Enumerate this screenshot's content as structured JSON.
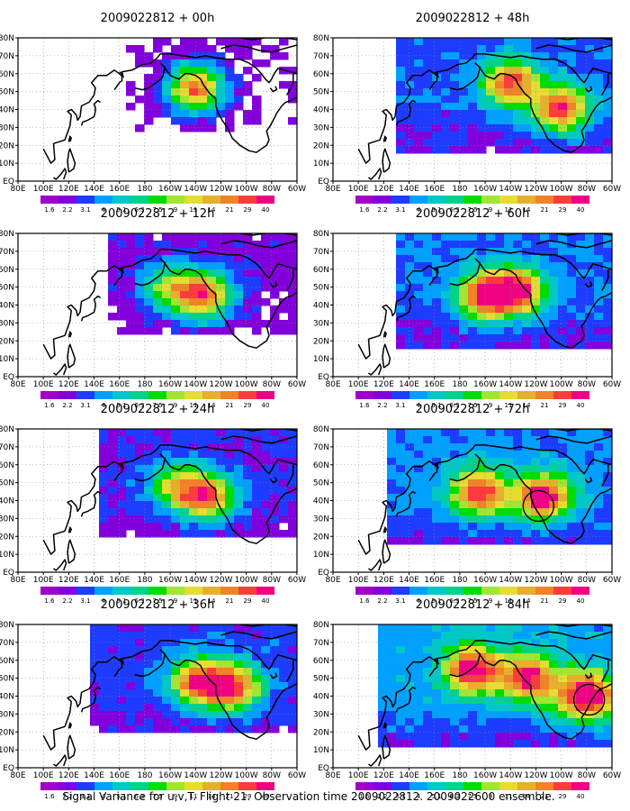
{
  "caption": "Signal Variance for u,v,T. Flight 21. Observation time 2009022812. 2009022600 ensemble.",
  "colorbar": {
    "levels": [
      "1.6",
      "2.2",
      "3.1",
      "4",
      "5.1",
      "6.3",
      "7.5",
      "9",
      "11",
      "14",
      "21",
      "29",
      "40"
    ],
    "colors": [
      "#a000c8",
      "#8200dc",
      "#1e3cff",
      "#00a0ff",
      "#00c8c8",
      "#00d28c",
      "#00dc00",
      "#a0e632",
      "#e6dc32",
      "#e6af2d",
      "#f08228",
      "#fa3c3c",
      "#f00082"
    ]
  },
  "longitude_ticks": [
    "80E",
    "100E",
    "120E",
    "140E",
    "160E",
    "180",
    "160W",
    "140W",
    "120W",
    "100W",
    "80W",
    "60W"
  ],
  "latitude_ticks": [
    "EQ",
    "10N",
    "20N",
    "30N",
    "40N",
    "50N",
    "60N",
    "70N",
    "80N"
  ],
  "chart_data": [
    {
      "type": "heatmap",
      "title": "2009022812 + 00h",
      "intensity": 0.15,
      "centers": [
        {
          "lon": -140,
          "lat": 52,
          "level": 10
        }
      ],
      "circles": []
    },
    {
      "type": "heatmap",
      "title": "2009022812 + 12h",
      "intensity": 0.35,
      "centers": [
        {
          "lon": -133,
          "lat": 45,
          "level": 9
        },
        {
          "lon": -160,
          "lat": 50,
          "level": 6
        }
      ],
      "circles": []
    },
    {
      "type": "heatmap",
      "title": "2009022812 + 24h",
      "intensity": 0.5,
      "centers": [
        {
          "lon": -130,
          "lat": 42,
          "level": 9
        },
        {
          "lon": -155,
          "lat": 48,
          "level": 6
        }
      ],
      "circles": []
    },
    {
      "type": "heatmap",
      "title": "2009022812 + 36h",
      "intensity": 0.6,
      "centers": [
        {
          "lon": -138,
          "lat": 48,
          "level": 9
        },
        {
          "lon": -110,
          "lat": 45,
          "level": 9
        }
      ],
      "circles": []
    },
    {
      "type": "heatmap",
      "title": "2009022812 + 48h",
      "intensity": 0.7,
      "centers": [
        {
          "lon": -140,
          "lat": 55,
          "level": 9
        },
        {
          "lon": -100,
          "lat": 40,
          "level": 9
        }
      ],
      "circles": []
    },
    {
      "type": "heatmap",
      "title": "2009022812 + 60h",
      "intensity": 0.75,
      "centers": [
        {
          "lon": -160,
          "lat": 45,
          "level": 9
        },
        {
          "lon": -135,
          "lat": 48,
          "level": 9
        }
      ],
      "circles": []
    },
    {
      "type": "heatmap",
      "title": "2009022812 + 72h",
      "intensity": 0.85,
      "centers": [
        {
          "lon": -165,
          "lat": 45,
          "level": 9
        },
        {
          "lon": -115,
          "lat": 42,
          "level": 10
        }
      ],
      "circles": [
        {
          "lon": -118,
          "lat": 37
        }
      ]
    },
    {
      "type": "heatmap",
      "title": "2009022812 + 84h",
      "intensity": 0.95,
      "centers": [
        {
          "lon": -170,
          "lat": 55,
          "level": 10
        },
        {
          "lon": -125,
          "lat": 50,
          "level": 9
        },
        {
          "lon": -80,
          "lat": 40,
          "level": 11
        }
      ],
      "circles": [
        {
          "lon": -78,
          "lat": 38
        }
      ]
    }
  ]
}
